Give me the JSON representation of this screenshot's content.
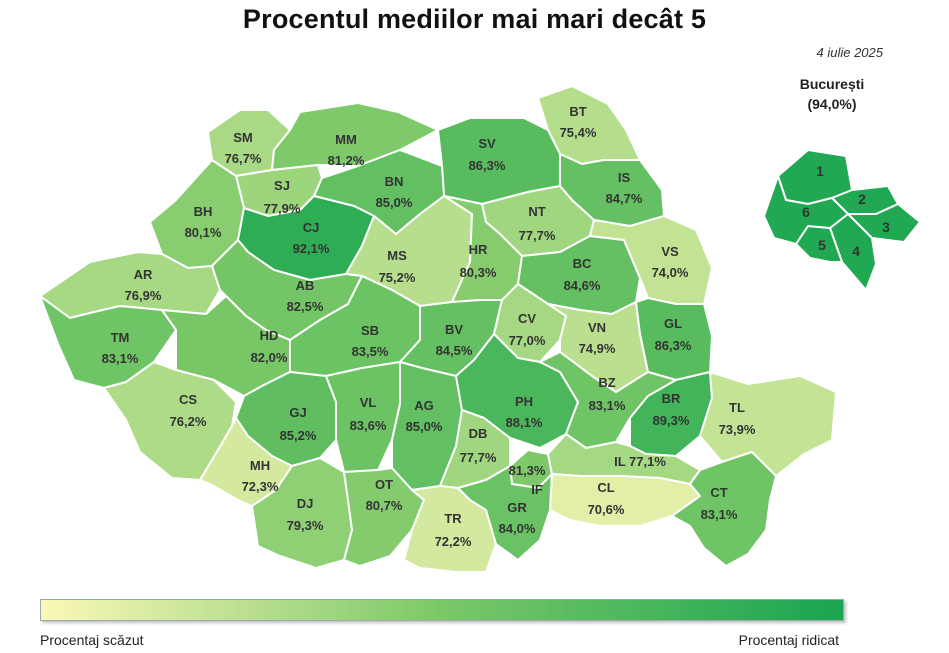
{
  "title": "Procentul mediilor mai mari decât 5",
  "date": "4 iulie 2025",
  "bucharest": {
    "name": "București",
    "value_label": "(94,0%)",
    "value": 94.0,
    "sectors": [
      "1",
      "2",
      "3",
      "4",
      "5",
      "6"
    ]
  },
  "legend": {
    "low_label": "Procentaj scăzut",
    "high_label": "Procentaj ridicat",
    "low_color": "#fbf8b8",
    "high_color": "#19a550"
  },
  "counties": [
    {
      "code": "SM",
      "value": 76.7,
      "label": "76,7%"
    },
    {
      "code": "MM",
      "value": 81.2,
      "label": "81,2%"
    },
    {
      "code": "BT",
      "value": 75.4,
      "label": "75,4%"
    },
    {
      "code": "SV",
      "value": 86.3,
      "label": "86,3%"
    },
    {
      "code": "SJ",
      "value": 77.9,
      "label": "77,9%"
    },
    {
      "code": "BN",
      "value": 85.0,
      "label": "85,0%"
    },
    {
      "code": "IS",
      "value": 84.7,
      "label": "84,7%"
    },
    {
      "code": "BH",
      "value": 80.1,
      "label": "80,1%"
    },
    {
      "code": "CJ",
      "value": 92.1,
      "label": "92,1%"
    },
    {
      "code": "NT",
      "value": 77.7,
      "label": "77,7%"
    },
    {
      "code": "MS",
      "value": 75.2,
      "label": "75,2%"
    },
    {
      "code": "HR",
      "value": 80.3,
      "label": "80,3%"
    },
    {
      "code": "BC",
      "value": 84.6,
      "label": "84,6%"
    },
    {
      "code": "VS",
      "value": 74.0,
      "label": "74,0%"
    },
    {
      "code": "AR",
      "value": 76.9,
      "label": "76,9%"
    },
    {
      "code": "AB",
      "value": 82.5,
      "label": "82,5%"
    },
    {
      "code": "TM",
      "value": 83.1,
      "label": "83,1%"
    },
    {
      "code": "HD",
      "value": 82.0,
      "label": "82,0%"
    },
    {
      "code": "SB",
      "value": 83.5,
      "label": "83,5%"
    },
    {
      "code": "BV",
      "value": 84.5,
      "label": "84,5%"
    },
    {
      "code": "CV",
      "value": 77.0,
      "label": "77,0%"
    },
    {
      "code": "VN",
      "value": 74.9,
      "label": "74,9%"
    },
    {
      "code": "GL",
      "value": 86.3,
      "label": "86,3%"
    },
    {
      "code": "CS",
      "value": 76.2,
      "label": "76,2%"
    },
    {
      "code": "GJ",
      "value": 85.2,
      "label": "85,2%"
    },
    {
      "code": "VL",
      "value": 83.6,
      "label": "83,6%"
    },
    {
      "code": "AG",
      "value": 85.0,
      "label": "85,0%"
    },
    {
      "code": "PH",
      "value": 88.1,
      "label": "88,1%"
    },
    {
      "code": "BZ",
      "value": 83.1,
      "label": "83,1%"
    },
    {
      "code": "BR",
      "value": 89.3,
      "label": "89,3%"
    },
    {
      "code": "TL",
      "value": 73.9,
      "label": "73,9%"
    },
    {
      "code": "DB",
      "value": 77.7,
      "label": "77,7%"
    },
    {
      "code": "MH",
      "value": 72.3,
      "label": "72,3%"
    },
    {
      "code": "IF",
      "value": 81.3,
      "label": "81,3%"
    },
    {
      "code": "IL",
      "value": 77.1,
      "label": "IL 77,1%"
    },
    {
      "code": "DJ",
      "value": 79.3,
      "label": "79,3%"
    },
    {
      "code": "OT",
      "value": 80.7,
      "label": "80,7%"
    },
    {
      "code": "TR",
      "value": 72.2,
      "label": "72,2%"
    },
    {
      "code": "GR",
      "value": 84.0,
      "label": "84,0%"
    },
    {
      "code": "CL",
      "value": 70.6,
      "label": "70,6%"
    },
    {
      "code": "CT",
      "value": 83.1,
      "label": "83,1%"
    }
  ]
}
